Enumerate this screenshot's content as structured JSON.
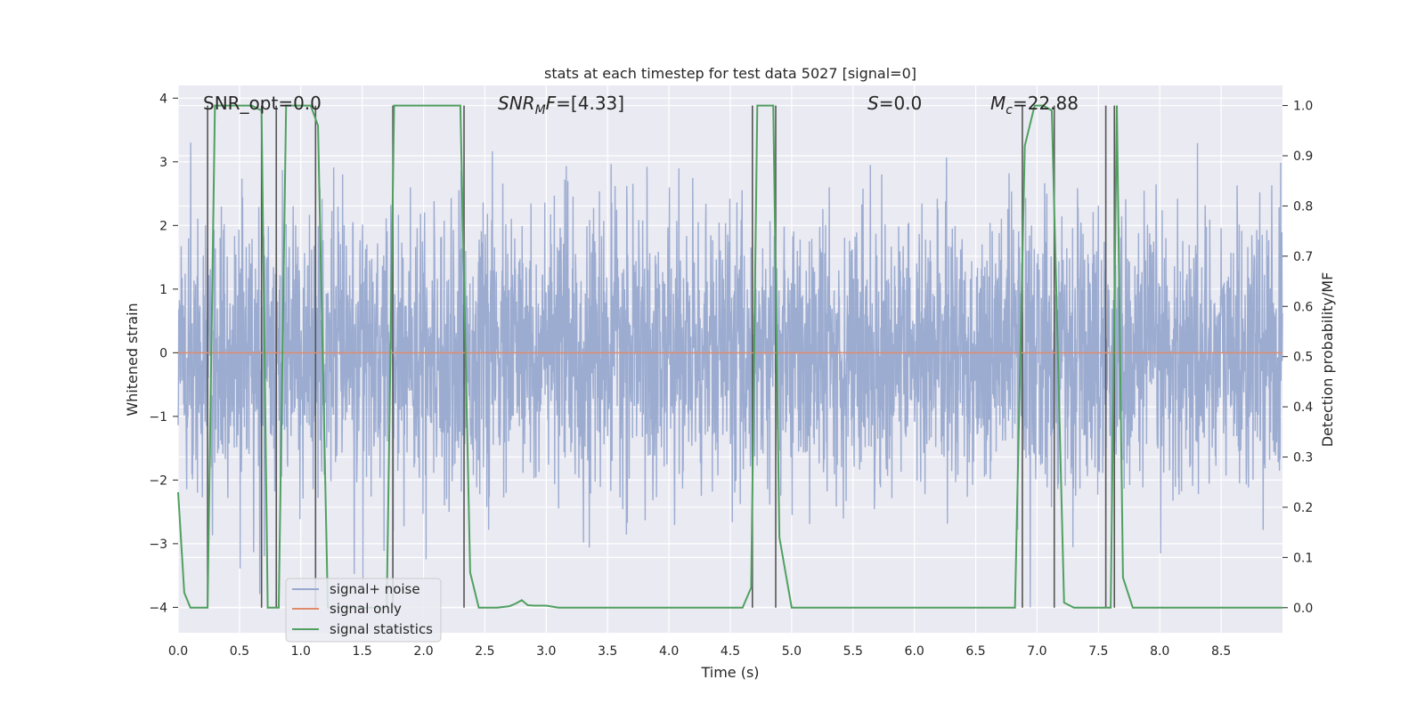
{
  "chart_data": {
    "type": "line",
    "title": "stats at each timestep for test data 5027 [signal=0]",
    "xlabel": "Time (s)",
    "ylabel": "Whitened strain",
    "y2label": "Detection probability/MF",
    "xlim": [
      0,
      9.0
    ],
    "ylim": [
      -4.4,
      4.2
    ],
    "y2lim": [
      -0.05,
      1.04
    ],
    "xticks": [
      "0.0",
      "0.5",
      "1.0",
      "1.5",
      "2.0",
      "2.5",
      "3.0",
      "3.5",
      "4.0",
      "4.5",
      "5.0",
      "5.5",
      "6.0",
      "6.5",
      "7.0",
      "7.5",
      "8.0",
      "8.5"
    ],
    "yticks": [
      "4",
      "3",
      "2",
      "1",
      "0",
      "−1",
      "−2",
      "−3",
      "−4"
    ],
    "y2ticks": [
      "1.0",
      "0.9",
      "0.8",
      "0.7",
      "0.6",
      "0.5",
      "0.4",
      "0.3",
      "0.2",
      "0.1",
      "0.0"
    ],
    "grid": true,
    "legend_position": "lower-left",
    "annotations": {
      "snr_opt": "SNR_opt=0.0",
      "snr_mf": "=[4.33]",
      "snr_mf_base": "SNR",
      "snr_mf_sub": "M",
      "snr_mf_rest": "F",
      "s_val": "=0.0",
      "s_sym": "S",
      "mc_val": "=22.88",
      "mc_base": "M",
      "mc_sub": "c"
    },
    "series": [
      {
        "name": "signal+ noise",
        "color": "#98a9cf",
        "amplitude_range": [
          -4.0,
          3.9
        ],
        "typical_envelope": [
          -2.5,
          2.8
        ]
      },
      {
        "name": "signal only",
        "color": "#e08c6b",
        "value": 0.0
      },
      {
        "name": "signal statistics",
        "color": "#50a060",
        "axis": "right",
        "x": [
          0.0,
          0.05,
          0.1,
          0.2,
          0.24,
          0.3,
          0.4,
          0.5,
          0.6,
          0.68,
          0.73,
          0.78,
          0.82,
          0.88,
          1.0,
          1.08,
          1.14,
          1.22,
          1.35,
          1.5,
          1.7,
          1.76,
          1.84,
          2.0,
          2.15,
          2.3,
          2.38,
          2.45,
          2.6,
          2.7,
          2.75,
          2.8,
          2.85,
          2.9,
          3.0,
          3.1,
          3.3,
          4.0,
          4.6,
          4.67,
          4.72,
          4.85,
          4.9,
          5.0,
          5.2,
          6.0,
          6.6,
          6.82,
          6.9,
          6.98,
          7.05,
          7.12,
          7.22,
          7.3,
          7.5,
          7.6,
          7.65,
          7.7,
          7.78,
          7.85,
          8.0,
          8.5,
          9.0
        ],
        "values": [
          0.23,
          0.03,
          0.0,
          0.0,
          0.0,
          1.0,
          1.0,
          1.0,
          1.0,
          0.99,
          0.0,
          0.0,
          0.0,
          1.0,
          1.0,
          1.0,
          0.96,
          0.0,
          0.0,
          0.0,
          0.0,
          1.0,
          1.0,
          1.0,
          1.0,
          1.0,
          0.07,
          0.0,
          0.0,
          0.003,
          0.008,
          0.015,
          0.005,
          0.004,
          0.004,
          0.0,
          0.0,
          0.0,
          0.0,
          0.04,
          1.0,
          1.0,
          0.14,
          0.0,
          0.0,
          0.0,
          0.0,
          0.0,
          0.92,
          1.0,
          1.0,
          0.99,
          0.01,
          0.0,
          0.0,
          0.0,
          1.0,
          0.06,
          0.0,
          0.0,
          0.0,
          0.0,
          0.0
        ]
      }
    ],
    "vertical_markers": [
      0.24,
      0.68,
      0.8,
      1.12,
      1.75,
      2.33,
      4.68,
      4.87,
      6.88,
      7.14,
      7.56,
      7.63
    ]
  }
}
